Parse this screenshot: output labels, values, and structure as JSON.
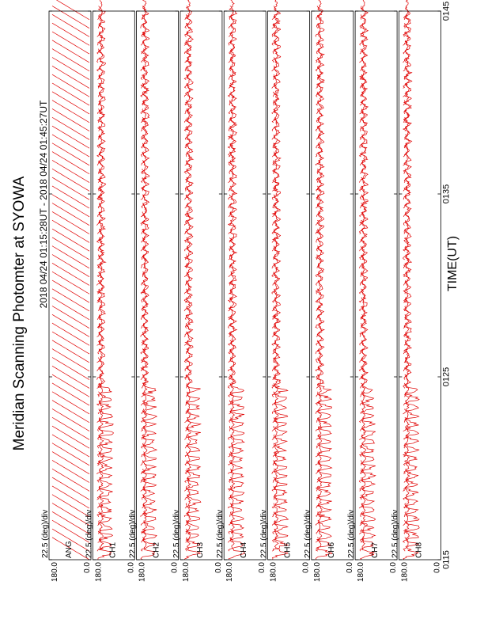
{
  "chart_data": {
    "type": "line",
    "title": "Meridian Scanning Photomter at SYOWA",
    "subtitle": "2018 04/24 01:15:28UT - 2018 04/24 01:45:27UT",
    "xlabel": "TIME(UT)",
    "x_ticks": [
      "0115",
      "0125",
      "0135",
      "0145"
    ],
    "scale_label": "22.5 (deg)/div",
    "y_ticks": [
      "180.0",
      "0.0"
    ],
    "line_color": "#e00000",
    "panels": [
      {
        "label": "ANG"
      },
      {
        "label": "CH1"
      },
      {
        "label": "CH2"
      },
      {
        "label": "CH3"
      },
      {
        "label": "CH4"
      },
      {
        "label": "CH5"
      },
      {
        "label": "CH6"
      },
      {
        "label": "CH7"
      },
      {
        "label": "CH8"
      }
    ]
  }
}
